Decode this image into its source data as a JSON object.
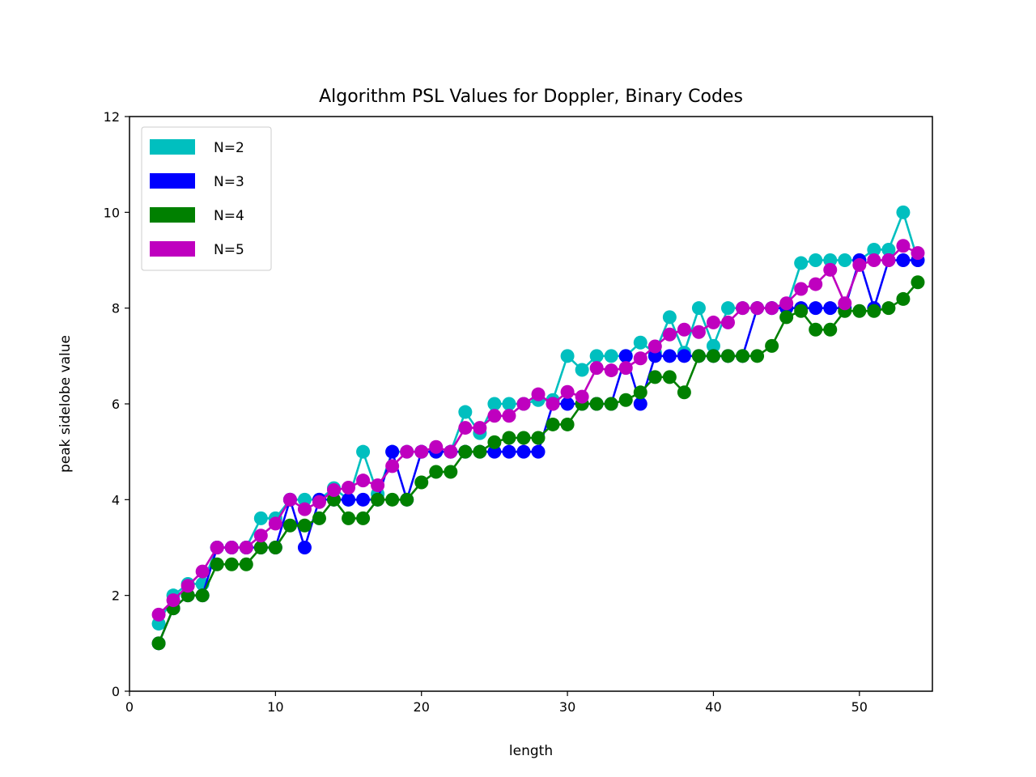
{
  "chart_data": {
    "type": "line",
    "title": "Algorithm PSL Values for Doppler, Binary Codes",
    "xlabel": "length",
    "ylabel": "peak sidelobe value",
    "xlim": [
      0,
      55
    ],
    "ylim": [
      0,
      12
    ],
    "xticks": [
      0,
      10,
      20,
      30,
      40,
      50
    ],
    "yticks": [
      0,
      2,
      4,
      6,
      8,
      10,
      12
    ],
    "grid": false,
    "legend_position": "upper-left",
    "x": [
      2,
      3,
      4,
      5,
      6,
      7,
      8,
      9,
      10,
      11,
      12,
      13,
      14,
      15,
      16,
      17,
      18,
      19,
      20,
      21,
      22,
      23,
      24,
      25,
      26,
      27,
      28,
      29,
      30,
      31,
      32,
      33,
      34,
      35,
      36,
      37,
      38,
      39,
      40,
      41,
      42,
      43,
      44,
      45,
      46,
      47,
      48,
      49,
      50,
      51,
      52,
      53,
      54
    ],
    "series": [
      {
        "name": "N=2",
        "color": "#00bfbf",
        "values": [
          1.41,
          2.0,
          2.24,
          2.24,
          3.0,
          3.0,
          3.0,
          3.61,
          3.61,
          4.0,
          4.0,
          4.0,
          4.24,
          4.0,
          5.0,
          4.12,
          5.0,
          5.0,
          5.0,
          5.0,
          5.0,
          5.83,
          5.39,
          6.0,
          6.0,
          6.0,
          6.08,
          6.08,
          7.0,
          6.71,
          7.0,
          7.0,
          7.0,
          7.28,
          7.07,
          7.81,
          7.07,
          8.0,
          7.21,
          8.0,
          8.0,
          8.0,
          8.0,
          8.0,
          8.94,
          9.0,
          9.0,
          9.0,
          9.0,
          9.22,
          9.22,
          10.0,
          9.0
        ]
      },
      {
        "name": "N=3",
        "color": "#0000ff",
        "values": [
          1.0,
          1.73,
          2.0,
          2.0,
          3.0,
          3.0,
          3.0,
          3.0,
          3.0,
          4.0,
          3.0,
          4.0,
          4.0,
          4.0,
          4.0,
          4.0,
          5.0,
          4.0,
          5.0,
          5.0,
          5.0,
          5.0,
          5.0,
          5.0,
          5.0,
          5.0,
          5.0,
          6.0,
          6.0,
          6.0,
          6.0,
          6.0,
          7.0,
          6.0,
          7.0,
          7.0,
          7.0,
          7.0,
          7.0,
          7.0,
          7.0,
          8.0,
          8.0,
          8.0,
          8.0,
          8.0,
          8.0,
          8.0,
          9.0,
          8.0,
          9.0,
          9.0,
          9.0
        ]
      },
      {
        "name": "N=4",
        "color": "#008000",
        "values": [
          1.0,
          1.73,
          2.0,
          2.0,
          2.65,
          2.65,
          2.65,
          3.0,
          3.0,
          3.46,
          3.46,
          3.61,
          4.0,
          3.61,
          3.61,
          4.0,
          4.0,
          4.0,
          4.36,
          4.58,
          4.58,
          5.0,
          5.0,
          5.2,
          5.29,
          5.29,
          5.29,
          5.57,
          5.57,
          6.0,
          6.0,
          6.0,
          6.08,
          6.24,
          6.56,
          6.56,
          6.24,
          7.0,
          7.0,
          7.0,
          7.0,
          7.0,
          7.21,
          7.81,
          7.94,
          7.55,
          7.55,
          7.94,
          7.94,
          7.94,
          8.0,
          8.19,
          8.54
        ]
      },
      {
        "name": "N=5",
        "color": "#bf00bf",
        "values": [
          1.6,
          1.9,
          2.2,
          2.5,
          3.0,
          3.0,
          3.0,
          3.25,
          3.5,
          4.0,
          3.8,
          3.95,
          4.2,
          4.25,
          4.4,
          4.3,
          4.7,
          5.0,
          5.0,
          5.1,
          5.0,
          5.5,
          5.5,
          5.75,
          5.75,
          6.0,
          6.2,
          6.0,
          6.25,
          6.15,
          6.75,
          6.7,
          6.75,
          6.95,
          7.2,
          7.45,
          7.55,
          7.5,
          7.7,
          7.7,
          8.0,
          8.0,
          8.0,
          8.1,
          8.4,
          8.5,
          8.8,
          8.1,
          8.9,
          9.0,
          9.0,
          9.3,
          9.15
        ]
      }
    ]
  }
}
